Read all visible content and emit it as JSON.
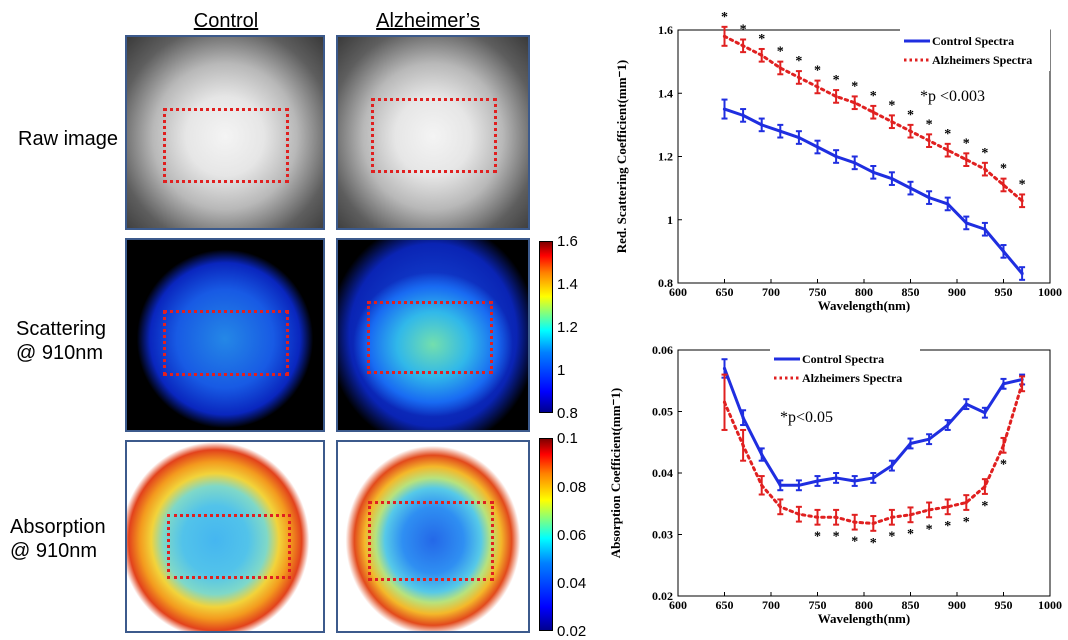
{
  "figure": {
    "columns": [
      "Control",
      "Alzheimer’s"
    ],
    "rows": [
      "Raw image",
      "Scattering\n@ 910nm",
      "Absorption\n@ 910nm"
    ],
    "colorbars": [
      {
        "ticks": [
          "1.6",
          "1.4",
          "1.2",
          "1",
          "0.8"
        ]
      },
      {
        "ticks": [
          "0.1",
          "0.08",
          "0.06",
          "0.04",
          "0.02"
        ]
      }
    ],
    "colormap": [
      "#00008f",
      "#0000ff",
      "#0080ff",
      "#00ffff",
      "#ffff00",
      "#ff8000",
      "#ff0000",
      "#800000"
    ],
    "roi_color": "#e02020"
  },
  "chart_data": [
    {
      "type": "line",
      "xlabel": "Wavelength(nm)",
      "ylabel": "Red. Scattering Coefficient(mm⁻1)",
      "xlim": [
        600,
        1000
      ],
      "ylim": [
        0.8,
        1.6
      ],
      "xticks": [
        "600",
        "650",
        "700",
        "750",
        "800",
        "850",
        "900",
        "950",
        "1000"
      ],
      "yticks": [
        "0.8",
        "1",
        "1.2",
        "1.4",
        "1.6"
      ],
      "annotation": "*p <0.003",
      "legend_position": "top-right",
      "x": [
        650,
        670,
        690,
        710,
        730,
        750,
        770,
        790,
        810,
        830,
        850,
        870,
        890,
        910,
        930,
        950,
        970
      ],
      "series": [
        {
          "name": "Control Spectra",
          "color": "#1f2ee0",
          "style": "solid",
          "values": [
            1.35,
            1.33,
            1.3,
            1.28,
            1.26,
            1.23,
            1.2,
            1.18,
            1.15,
            1.13,
            1.1,
            1.07,
            1.05,
            0.99,
            0.97,
            0.9,
            0.83
          ],
          "errors": [
            0.03,
            0.02,
            0.02,
            0.02,
            0.02,
            0.02,
            0.02,
            0.02,
            0.02,
            0.02,
            0.02,
            0.02,
            0.02,
            0.02,
            0.02,
            0.02,
            0.02
          ]
        },
        {
          "name": "Alzheimers Spectra",
          "color": "#e02020",
          "style": "dotted",
          "values": [
            1.58,
            1.55,
            1.52,
            1.48,
            1.45,
            1.42,
            1.39,
            1.37,
            1.34,
            1.31,
            1.28,
            1.25,
            1.22,
            1.19,
            1.16,
            1.11,
            1.06
          ],
          "errors": [
            0.03,
            0.02,
            0.02,
            0.02,
            0.02,
            0.02,
            0.02,
            0.02,
            0.02,
            0.02,
            0.02,
            0.02,
            0.02,
            0.02,
            0.02,
            0.02,
            0.02
          ]
        }
      ],
      "significant_x": [
        650,
        670,
        690,
        710,
        730,
        750,
        770,
        790,
        810,
        830,
        850,
        870,
        890,
        910,
        930,
        950,
        970
      ]
    },
    {
      "type": "line",
      "xlabel": "Wavelength(nm)",
      "ylabel": "Absorption Coefficient(mm⁻1)",
      "xlim": [
        600,
        1000
      ],
      "ylim": [
        0.02,
        0.06
      ],
      "xticks": [
        "600",
        "650",
        "700",
        "750",
        "800",
        "850",
        "900",
        "950",
        "1000"
      ],
      "yticks": [
        "0.02",
        "0.03",
        "0.04",
        "0.05",
        "0.06"
      ],
      "annotation": "*p<0.05",
      "legend_position": "top-left",
      "x": [
        650,
        670,
        690,
        710,
        730,
        750,
        770,
        790,
        810,
        830,
        850,
        870,
        890,
        910,
        930,
        950,
        970
      ],
      "series": [
        {
          "name": "Control Spectra",
          "color": "#1f2ee0",
          "style": "solid",
          "values": [
            0.057,
            0.049,
            0.043,
            0.038,
            0.038,
            0.0387,
            0.0392,
            0.0387,
            0.0392,
            0.0412,
            0.0448,
            0.0455,
            0.0478,
            0.0512,
            0.0498,
            0.0545,
            0.0552
          ],
          "errors": [
            0.0015,
            0.0012,
            0.001,
            0.0008,
            0.0008,
            0.0008,
            0.0008,
            0.0008,
            0.0008,
            0.0008,
            0.0008,
            0.0008,
            0.0008,
            0.0008,
            0.0008,
            0.0008,
            0.0008
          ]
        },
        {
          "name": "Alzheimers Spectra",
          "color": "#e02020",
          "style": "dotted",
          "values": [
            0.0515,
            0.0445,
            0.038,
            0.0345,
            0.0333,
            0.0328,
            0.0328,
            0.032,
            0.0318,
            0.0328,
            0.0332,
            0.034,
            0.0345,
            0.0352,
            0.0378,
            0.0445,
            0.0545
          ],
          "errors": [
            0.0045,
            0.0025,
            0.0015,
            0.0012,
            0.0012,
            0.0012,
            0.0012,
            0.0012,
            0.0012,
            0.0012,
            0.0012,
            0.0012,
            0.0012,
            0.0012,
            0.0012,
            0.0012,
            0.0012
          ]
        }
      ],
      "significant_x": [
        750,
        770,
        790,
        810,
        830,
        850,
        870,
        890,
        910,
        930,
        950
      ]
    }
  ]
}
